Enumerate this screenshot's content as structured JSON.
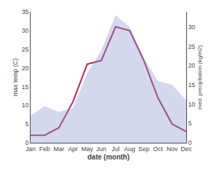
{
  "chart_data": {
    "type": "line",
    "xlabel": "date (month)",
    "ylabel": "max temp (C)",
    "y2label": "med. precipitation (kg/m2)",
    "categories": [
      "Jan",
      "Feb",
      "Mar",
      "Apr",
      "May",
      "Jun",
      "Jul",
      "Aug",
      "Sep",
      "Oct",
      "Nov",
      "Dec"
    ],
    "series": [
      {
        "type": "area",
        "axis": "y2",
        "color": "#8090d0",
        "values": [
          7,
          9.5,
          8,
          9,
          18,
          24,
          33,
          30,
          22,
          16,
          15,
          11
        ]
      },
      {
        "type": "line",
        "color": "#b03060",
        "values": [
          2,
          2,
          4,
          11,
          21,
          22,
          31,
          30,
          22,
          12,
          5,
          3
        ]
      }
    ],
    "ylim": [
      0,
      35
    ],
    "yticks": [
      0,
      5,
      10,
      15,
      20,
      25,
      30,
      35
    ],
    "y2lim": [
      0,
      33.917
    ],
    "y2ticks": [
      0,
      5,
      10,
      15,
      20,
      25,
      30
    ],
    "grid": false
  }
}
